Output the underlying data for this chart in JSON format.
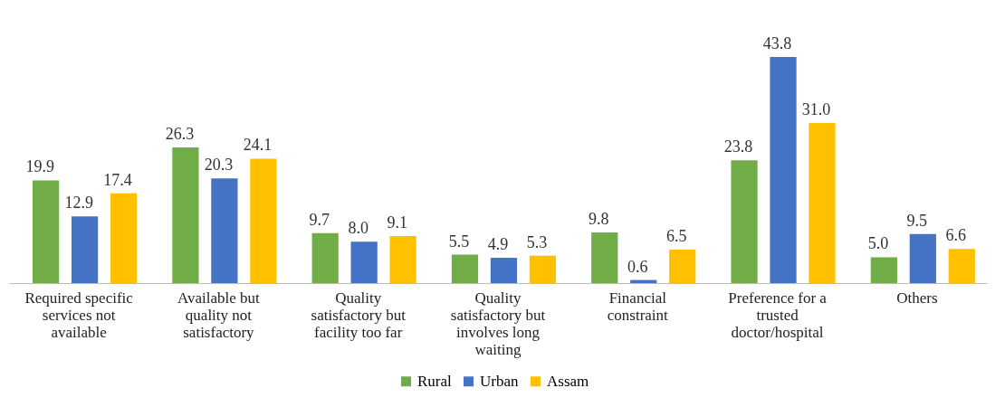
{
  "chart_data": {
    "type": "bar",
    "categories": [
      "Required specific services not available",
      "Available but quality not satisfactory",
      "Quality satisfactory but facility too far",
      "Quality satisfactory but involves long waiting",
      "Financial constraint",
      "Preference for a trusted doctor/hospital",
      "Others"
    ],
    "series": [
      {
        "name": "Rural",
        "color": "#70ad47",
        "values": [
          19.9,
          26.3,
          9.7,
          5.5,
          9.8,
          23.8,
          5.0
        ],
        "value_labels": [
          "19.9",
          "26.3",
          "9.7",
          "5.5",
          "9.8",
          "23.8",
          "5.0"
        ]
      },
      {
        "name": "Urban",
        "color": "#4472c4",
        "values": [
          12.9,
          20.3,
          8.0,
          4.9,
          0.6,
          43.8,
          9.5
        ],
        "value_labels": [
          "12.9",
          "20.3",
          "8.0",
          "4.9",
          "0.6",
          "43.8",
          "9.5"
        ]
      },
      {
        "name": "Assam",
        "color": "#ffc000",
        "values": [
          17.4,
          24.1,
          9.1,
          5.3,
          6.5,
          31.0,
          6.6
        ],
        "value_labels": [
          "17.4",
          "24.1",
          "9.1",
          "5.3",
          "6.5",
          "31.0",
          "6.6"
        ]
      }
    ],
    "legend": "bottom",
    "grid": false
  }
}
